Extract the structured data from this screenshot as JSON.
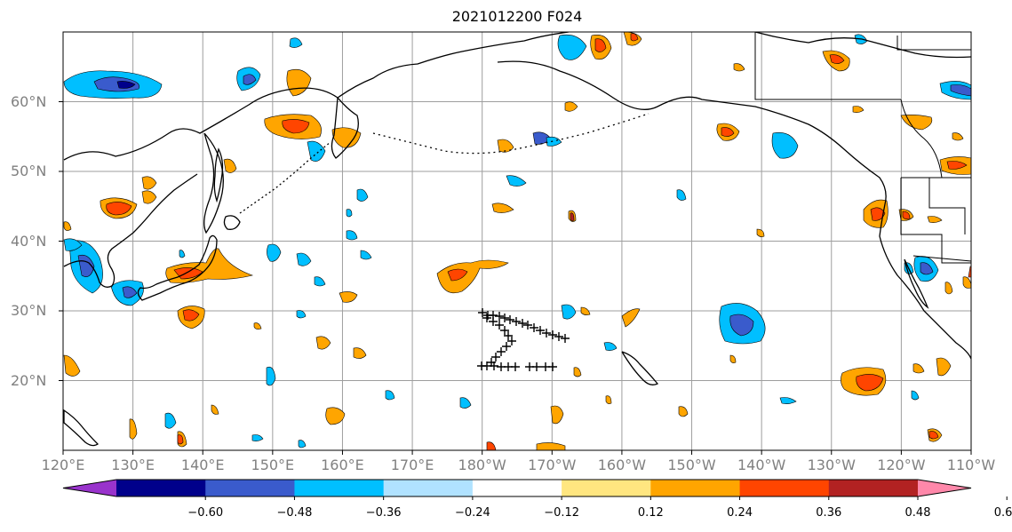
{
  "title": "2021012200 F024",
  "map": {
    "lat_labels": [
      {
        "text": "60°N",
        "lat": 60
      },
      {
        "text": "50°N",
        "lat": 50
      },
      {
        "text": "40°N",
        "lat": 40
      },
      {
        "text": "30°N",
        "lat": 30
      },
      {
        "text": "20°N",
        "lat": 20
      }
    ],
    "lon_labels": [
      {
        "text": "120°E",
        "lon": 120
      },
      {
        "text": "130°E",
        "lon": 130
      },
      {
        "text": "140°E",
        "lon": 140
      },
      {
        "text": "150°E",
        "lon": 150
      },
      {
        "text": "160°E",
        "lon": 160
      },
      {
        "text": "170°E",
        "lon": 170
      },
      {
        "text": "180°W",
        "lon": 180
      },
      {
        "text": "170°W",
        "lon": 190
      },
      {
        "text": "160°W",
        "lon": 200
      },
      {
        "text": "150°W",
        "lon": 210
      },
      {
        "text": "140°W",
        "lon": 220
      },
      {
        "text": "130°W",
        "lon": 230
      },
      {
        "text": "120°W",
        "lon": 240
      },
      {
        "text": "110°W",
        "lon": 250
      }
    ]
  },
  "colorbar": {
    "ticks": [
      "−0.60",
      "−0.48",
      "−0.36",
      "−0.24",
      "−0.12",
      "0.12",
      "0.24",
      "0.36",
      "0.48",
      "0.60"
    ],
    "colors": [
      "#9933cc",
      "#00008b",
      "#3a5bcc",
      "#00bfff",
      "#b0e2ff",
      "#ffffff",
      "#ffe680",
      "#ffa500",
      "#ff4500",
      "#b22222",
      "#ff88aa"
    ]
  }
}
